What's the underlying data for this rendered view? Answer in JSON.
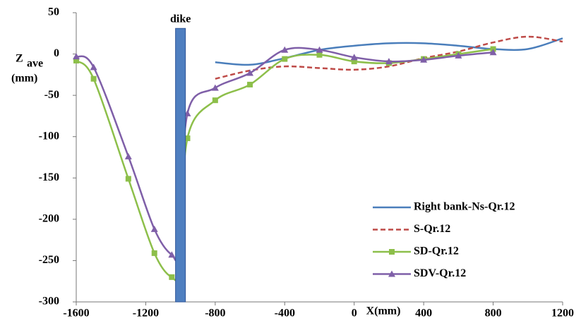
{
  "chart_data": {
    "type": "line",
    "y_label": {
      "main": "Z",
      "sub": "ave",
      "unit": "(mm)"
    },
    "x_label": "X(mm)",
    "dike": {
      "label": "dike",
      "x": -1000,
      "top": 31,
      "color": "#4f7fc0"
    },
    "xlim": [
      -1600,
      1200
    ],
    "xticks": [
      -1600,
      -1200,
      -800,
      -400,
      0,
      400,
      800,
      1200
    ],
    "ylim": [
      -300,
      50
    ],
    "yticks": [
      -300,
      -250,
      -200,
      -150,
      -100,
      -50,
      0,
      50
    ],
    "grid": false,
    "legend": "lower right",
    "series": [
      {
        "name": "Right bank-Ns-Qr.12",
        "color": "#4a7ebb",
        "dash": false,
        "marker": "none",
        "x": [
          -800,
          -600,
          -400,
          -200,
          0,
          200,
          400,
          600,
          800,
          1000,
          1200
        ],
        "values": [
          -10,
          -13,
          -5,
          5,
          10,
          13,
          13,
          10,
          6,
          6,
          19
        ]
      },
      {
        "name": "S-Qr.12",
        "color": "#be4b48",
        "dash": true,
        "marker": "none",
        "x": [
          -800,
          -600,
          -400,
          -200,
          0,
          200,
          400,
          600,
          800,
          1000,
          1200
        ],
        "values": [
          -30,
          -20,
          -15,
          -17,
          -19,
          -15,
          -5,
          3,
          14,
          21,
          15
        ]
      },
      {
        "name": "SD-Qr.12",
        "color": "#8dbf4a",
        "dash": false,
        "marker": "square",
        "x": [
          -1600,
          -1500,
          -1300,
          -1150,
          -1050,
          -1010,
          -960,
          -800,
          -600,
          -400,
          -200,
          0,
          200,
          400,
          600,
          800
        ],
        "values": [
          -8,
          -30,
          -151,
          -241,
          -270,
          -255,
          -102,
          -56,
          -37,
          -6,
          -1,
          -9,
          -11,
          -6,
          0,
          6
        ]
      },
      {
        "name": "SDV-Qr.12",
        "color": "#7f5fa8",
        "dash": false,
        "marker": "triangle",
        "x": [
          -1600,
          -1500,
          -1300,
          -1150,
          -1050,
          -1010,
          -960,
          -800,
          -600,
          -400,
          -200,
          0,
          200,
          400,
          600,
          800
        ],
        "values": [
          -3,
          -16,
          -124,
          -212,
          -243,
          -233,
          -72,
          -41,
          -23,
          5,
          5,
          -4,
          -9,
          -7,
          -2,
          2
        ]
      }
    ]
  }
}
